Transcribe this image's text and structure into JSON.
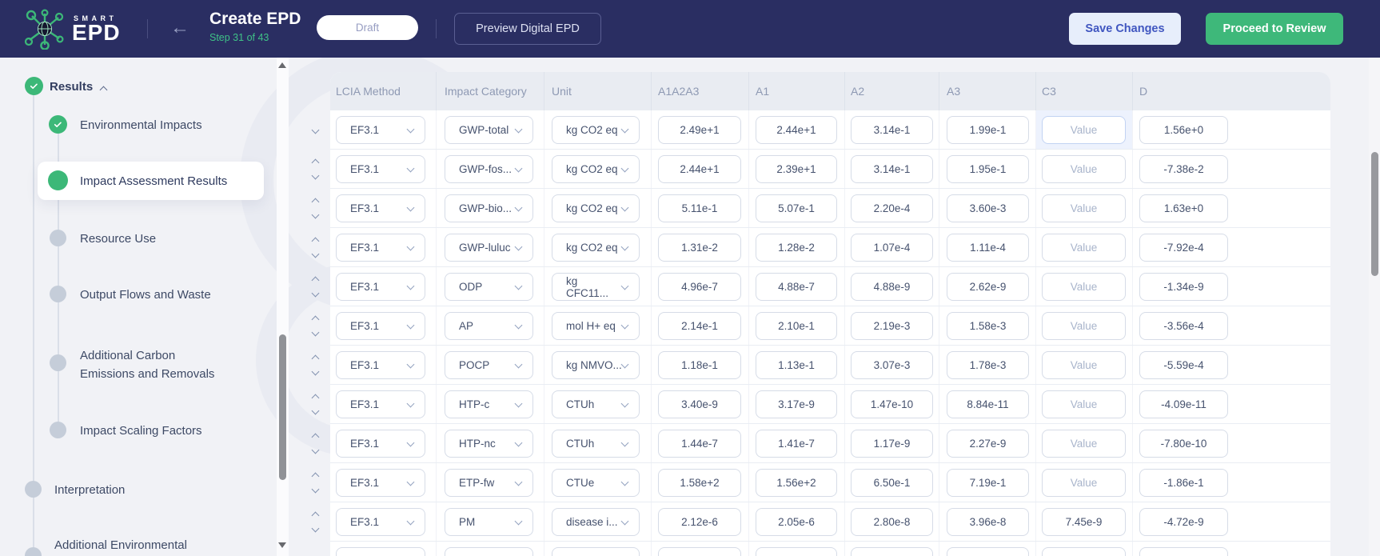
{
  "header": {
    "brand_smart": "SMART",
    "brand_epd": "EPD",
    "back_arrow": "←",
    "title": "Create EPD",
    "step": "Step 31 of 43",
    "status_pill": "Draft",
    "preview_button": "Preview Digital EPD",
    "save_button": "Save Changes",
    "proceed_button": "Proceed to Review"
  },
  "colors": {
    "navy": "#2a2e62",
    "green": "#3cb878",
    "step_green": "#3fc287",
    "focus_blue": "#edf2fd"
  },
  "sidebar": {
    "items": [
      {
        "label": "Results",
        "state": "done",
        "level": 0
      },
      {
        "label": "Environmental Impacts",
        "state": "done",
        "level": 1
      },
      {
        "label": "Impact Assessment Results",
        "state": "active",
        "level": 1
      },
      {
        "label": "Resource Use",
        "state": "pending",
        "level": 1
      },
      {
        "label": "Output Flows and Waste",
        "state": "pending",
        "level": 1
      },
      {
        "label": "Additional Carbon Emissions and Removals",
        "state": "pending",
        "level": 1
      },
      {
        "label": "Impact Scaling Factors",
        "state": "pending",
        "level": 1
      },
      {
        "label": "Interpretation",
        "state": "pending",
        "level": 0
      },
      {
        "label": "Additional Environmental",
        "state": "pending",
        "level": 0
      }
    ]
  },
  "table": {
    "columns": [
      "LCIA Method",
      "Impact Category",
      "Unit",
      "A1A2A3",
      "A1",
      "A2",
      "A3",
      "C3",
      "D"
    ],
    "value_placeholder": "Value",
    "has_partial_next_row": true,
    "rows": [
      {
        "lcia": "EF3.1",
        "impact": "GWP-total",
        "unit": "kg CO2 eq",
        "a1a2a3": "2.49e+1",
        "a1": "2.44e+1",
        "a2": "3.14e-1",
        "a3": "1.99e-1",
        "c3": "",
        "d": "1.56e+0"
      },
      {
        "lcia": "EF3.1",
        "impact": "GWP-fos...",
        "unit": "kg CO2 eq",
        "a1a2a3": "2.44e+1",
        "a1": "2.39e+1",
        "a2": "3.14e-1",
        "a3": "1.95e-1",
        "c3": "",
        "d": "-7.38e-2"
      },
      {
        "lcia": "EF3.1",
        "impact": "GWP-bio...",
        "unit": "kg CO2 eq",
        "a1a2a3": "5.11e-1",
        "a1": "5.07e-1",
        "a2": "2.20e-4",
        "a3": "3.60e-3",
        "c3": "",
        "d": "1.63e+0"
      },
      {
        "lcia": "EF3.1",
        "impact": "GWP-luluc",
        "unit": "kg CO2 eq",
        "a1a2a3": "1.31e-2",
        "a1": "1.28e-2",
        "a2": "1.07e-4",
        "a3": "1.11e-4",
        "c3": "",
        "d": "-7.92e-4"
      },
      {
        "lcia": "EF3.1",
        "impact": "ODP",
        "unit": "kg CFC11...",
        "a1a2a3": "4.96e-7",
        "a1": "4.88e-7",
        "a2": "4.88e-9",
        "a3": "2.62e-9",
        "c3": "",
        "d": "-1.34e-9"
      },
      {
        "lcia": "EF3.1",
        "impact": "AP",
        "unit": "mol H+ eq",
        "a1a2a3": "2.14e-1",
        "a1": "2.10e-1",
        "a2": "2.19e-3",
        "a3": "1.58e-3",
        "c3": "",
        "d": "-3.56e-4"
      },
      {
        "lcia": "EF3.1",
        "impact": "POCP",
        "unit": "kg NMVO...",
        "a1a2a3": "1.18e-1",
        "a1": "1.13e-1",
        "a2": "3.07e-3",
        "a3": "1.78e-3",
        "c3": "",
        "d": "-5.59e-4"
      },
      {
        "lcia": "EF3.1",
        "impact": "HTP-c",
        "unit": "CTUh",
        "a1a2a3": "3.40e-9",
        "a1": "3.17e-9",
        "a2": "1.47e-10",
        "a3": "8.84e-11",
        "c3": "",
        "d": "-4.09e-11"
      },
      {
        "lcia": "EF3.1",
        "impact": "HTP-nc",
        "unit": "CTUh",
        "a1a2a3": "1.44e-7",
        "a1": "1.41e-7",
        "a2": "1.17e-9",
        "a3": "2.27e-9",
        "c3": "",
        "d": "-7.80e-10"
      },
      {
        "lcia": "EF3.1",
        "impact": "ETP-fw",
        "unit": "CTUe",
        "a1a2a3": "1.58e+2",
        "a1": "1.56e+2",
        "a2": "6.50e-1",
        "a3": "7.19e-1",
        "c3": "",
        "d": "-1.86e-1"
      },
      {
        "lcia": "EF3.1",
        "impact": "PM",
        "unit": "disease i...",
        "a1a2a3": "2.12e-6",
        "a1": "2.05e-6",
        "a2": "2.80e-8",
        "a3": "3.96e-8",
        "c3": "7.45e-9",
        "d": "-4.72e-9"
      }
    ]
  }
}
